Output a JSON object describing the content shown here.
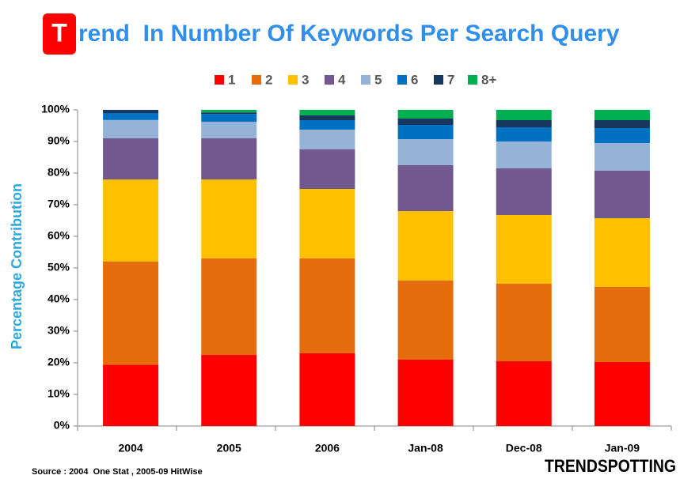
{
  "chart_data": {
    "type": "stacked_bar",
    "title_initial": "T",
    "title": "rend  In Number Of Keywords Per Search Query",
    "y_label": "Percentage Contribution",
    "source": "Source : 2004  One Stat , 2005-09 HitWise",
    "logo": "TRENDSPOTTING",
    "categories": [
      "2004",
      "2005",
      "2006",
      "Jan-08",
      "Dec-08",
      "Jan-09"
    ],
    "series": [
      {
        "name": "1",
        "color": "#ff0000",
        "values": [
          19.4,
          22.5,
          23,
          21,
          20.5,
          20.25
        ]
      },
      {
        "name": "2",
        "color": "#e46c0a",
        "values": [
          32.6,
          30.5,
          30,
          25,
          24.5,
          23.75
        ]
      },
      {
        "name": "3",
        "color": "#ffc000",
        "values": [
          26,
          25,
          22,
          22,
          21.75,
          21.75
        ]
      },
      {
        "name": "4",
        "color": "#71588f",
        "values": [
          13,
          13,
          12.5,
          14.5,
          14.75,
          15
        ]
      },
      {
        "name": "5",
        "color": "#95b3d7",
        "values": [
          5.8,
          5.2,
          6.25,
          8.25,
          8.5,
          8.75
        ]
      },
      {
        "name": "6",
        "color": "#0070c0",
        "values": [
          2.2,
          2.5,
          3,
          4.5,
          4.5,
          4.75
        ]
      },
      {
        "name": "7",
        "color": "#17375e",
        "values": [
          1,
          0.5,
          1.5,
          2,
          2.25,
          2.5
        ]
      },
      {
        "name": "8+",
        "color": "#00b050",
        "values": [
          0,
          0.8,
          1.75,
          2.75,
          3.25,
          3.25
        ]
      }
    ],
    "ylim": [
      0,
      100
    ],
    "yticks": [
      {
        "value": 0,
        "label": "0%"
      },
      {
        "value": 10,
        "label": "10%"
      },
      {
        "value": 20,
        "label": "20%"
      },
      {
        "value": 30,
        "label": "30%"
      },
      {
        "value": 40,
        "label": "40%"
      },
      {
        "value": 50,
        "label": "50%"
      },
      {
        "value": 60,
        "label": "60%"
      },
      {
        "value": 70,
        "label": "70%"
      },
      {
        "value": 80,
        "label": "80%"
      },
      {
        "value": 90,
        "label": "90%"
      },
      {
        "value": 100,
        "label": "100%"
      }
    ],
    "grid": false,
    "legend": "top"
  }
}
